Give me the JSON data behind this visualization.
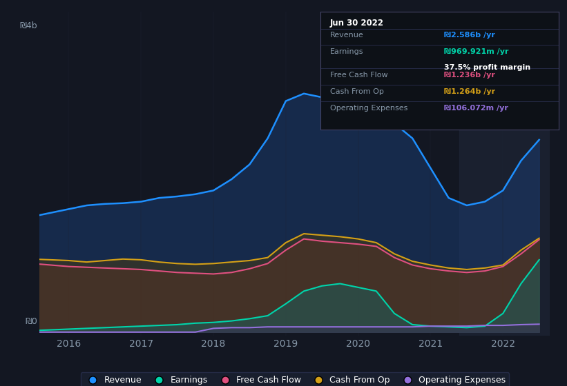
{
  "background_color": "#131722",
  "plot_bg_color": "#131722",
  "ylabel_top": "₪4b",
  "ylabel_bottom": "₪0",
  "x_ticks": [
    2016,
    2017,
    2018,
    2019,
    2020,
    2021,
    2022
  ],
  "colors": {
    "revenue": "#1e90ff",
    "earnings": "#00d4aa",
    "free_cash_flow": "#e05080",
    "cash_from_op": "#d4a017",
    "operating_expenses": "#9370db"
  },
  "fill_colors": {
    "revenue": "#1a3a6e",
    "earnings": "#1a6060",
    "free_cash_flow": "#5a2a3a",
    "cash_from_op": "#4a3a10",
    "operating_expenses": "#3a2a5a"
  },
  "tooltip": {
    "date": "Jun 30 2022",
    "revenue_label": "Revenue",
    "revenue_value": "₪2.586b /yr",
    "revenue_color": "#1e90ff",
    "earnings_label": "Earnings",
    "earnings_value": "₪969.921m /yr",
    "earnings_color": "#00d4aa",
    "margin_value": "37.5% profit margin",
    "fcf_label": "Free Cash Flow",
    "fcf_value": "₪1.236b /yr",
    "fcf_color": "#e05080",
    "cfo_label": "Cash From Op",
    "cfo_value": "₪1.264b /yr",
    "cfo_color": "#d4a017",
    "opex_label": "Operating Expenses",
    "opex_value": "₪106.072m /yr",
    "opex_color": "#9370db"
  },
  "legend": [
    {
      "label": "Revenue",
      "color": "#1e90ff"
    },
    {
      "label": "Earnings",
      "color": "#00d4aa"
    },
    {
      "label": "Free Cash Flow",
      "color": "#e05080"
    },
    {
      "label": "Cash From Op",
      "color": "#d4a017"
    },
    {
      "label": "Operating Expenses",
      "color": "#9370db"
    }
  ],
  "xmin": 2015.6,
  "xmax": 2022.65,
  "ymin": -0.05,
  "ymax": 4.3,
  "highlight_x_start": 2021.4,
  "highlight_x_end": 2022.65,
  "revenue": {
    "x": [
      2015.5,
      2015.75,
      2016.0,
      2016.25,
      2016.5,
      2016.75,
      2017.0,
      2017.25,
      2017.5,
      2017.75,
      2018.0,
      2018.25,
      2018.5,
      2018.75,
      2019.0,
      2019.25,
      2019.5,
      2019.75,
      2020.0,
      2020.25,
      2020.5,
      2020.75,
      2021.0,
      2021.25,
      2021.5,
      2021.75,
      2022.0,
      2022.25,
      2022.5
    ],
    "y": [
      1.55,
      1.6,
      1.65,
      1.7,
      1.72,
      1.73,
      1.75,
      1.8,
      1.82,
      1.85,
      1.9,
      2.05,
      2.25,
      2.6,
      3.1,
      3.2,
      3.15,
      3.1,
      3.05,
      3.0,
      2.8,
      2.6,
      2.2,
      1.8,
      1.7,
      1.75,
      1.9,
      2.3,
      2.58
    ]
  },
  "earnings": {
    "x": [
      2015.5,
      2015.75,
      2016.0,
      2016.25,
      2016.5,
      2016.75,
      2017.0,
      2017.25,
      2017.5,
      2017.75,
      2018.0,
      2018.25,
      2018.5,
      2018.75,
      2019.0,
      2019.25,
      2019.5,
      2019.75,
      2020.0,
      2020.25,
      2020.5,
      2020.75,
      2021.0,
      2021.25,
      2021.5,
      2021.75,
      2022.0,
      2022.25,
      2022.5
    ],
    "y": [
      0.02,
      0.03,
      0.04,
      0.05,
      0.06,
      0.07,
      0.08,
      0.09,
      0.1,
      0.12,
      0.13,
      0.15,
      0.18,
      0.22,
      0.38,
      0.55,
      0.62,
      0.65,
      0.6,
      0.55,
      0.25,
      0.1,
      0.08,
      0.07,
      0.06,
      0.08,
      0.25,
      0.65,
      0.97
    ]
  },
  "free_cash_flow": {
    "x": [
      2015.5,
      2015.75,
      2016.0,
      2016.25,
      2016.5,
      2016.75,
      2017.0,
      2017.25,
      2017.5,
      2017.75,
      2018.0,
      2018.25,
      2018.5,
      2018.75,
      2019.0,
      2019.25,
      2019.5,
      2019.75,
      2020.0,
      2020.25,
      2020.5,
      2020.75,
      2021.0,
      2021.25,
      2021.5,
      2021.75,
      2022.0,
      2022.25,
      2022.5
    ],
    "y": [
      0.92,
      0.9,
      0.88,
      0.87,
      0.86,
      0.85,
      0.84,
      0.82,
      0.8,
      0.79,
      0.78,
      0.8,
      0.85,
      0.92,
      1.1,
      1.25,
      1.22,
      1.2,
      1.18,
      1.15,
      1.0,
      0.9,
      0.85,
      0.82,
      0.8,
      0.82,
      0.88,
      1.05,
      1.24
    ]
  },
  "cash_from_op": {
    "x": [
      2015.5,
      2015.75,
      2016.0,
      2016.25,
      2016.5,
      2016.75,
      2017.0,
      2017.25,
      2017.5,
      2017.75,
      2018.0,
      2018.25,
      2018.5,
      2018.75,
      2019.0,
      2019.25,
      2019.5,
      2019.75,
      2020.0,
      2020.25,
      2020.5,
      2020.75,
      2021.0,
      2021.25,
      2021.5,
      2021.75,
      2022.0,
      2022.25,
      2022.5
    ],
    "y": [
      0.98,
      0.97,
      0.96,
      0.94,
      0.96,
      0.98,
      0.97,
      0.94,
      0.92,
      0.91,
      0.92,
      0.94,
      0.96,
      1.0,
      1.2,
      1.32,
      1.3,
      1.28,
      1.25,
      1.2,
      1.05,
      0.95,
      0.9,
      0.86,
      0.84,
      0.86,
      0.9,
      1.1,
      1.26
    ]
  },
  "operating_expenses": {
    "x": [
      2015.5,
      2015.75,
      2016.0,
      2016.25,
      2016.5,
      2016.75,
      2017.0,
      2017.25,
      2017.5,
      2017.75,
      2018.0,
      2018.25,
      2018.5,
      2018.75,
      2019.0,
      2019.25,
      2019.5,
      2019.75,
      2020.0,
      2020.25,
      2020.5,
      2020.75,
      2021.0,
      2021.25,
      2021.5,
      2021.75,
      2022.0,
      2022.25,
      2022.5
    ],
    "y": [
      0.0,
      0.0,
      0.0,
      0.0,
      0.0,
      0.0,
      0.0,
      0.0,
      0.0,
      0.0,
      0.05,
      0.06,
      0.06,
      0.07,
      0.07,
      0.07,
      0.07,
      0.07,
      0.07,
      0.07,
      0.07,
      0.07,
      0.08,
      0.08,
      0.08,
      0.09,
      0.09,
      0.1,
      0.106
    ]
  }
}
